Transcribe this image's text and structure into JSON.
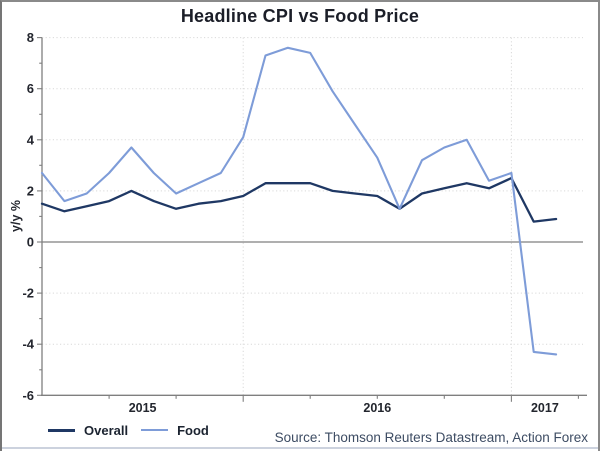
{
  "title": "Headline CPI vs Food Price",
  "source": "Source: Thomson Reuters Datastream, Action Forex",
  "y_axis": {
    "title": "y/y %",
    "min": -6,
    "max": 8,
    "tick_step": 2,
    "tick_labels": [
      "8",
      "6",
      "4",
      "2",
      "0",
      "-2",
      "-4",
      "-6"
    ]
  },
  "x_axis": {
    "year_labels": [
      "2015",
      "2016",
      "2017"
    ],
    "major_gridlines_at": [
      "Jan 2016",
      "Jan 2017"
    ]
  },
  "colors": {
    "overall": "#1F3864",
    "food": "#7E9CD8",
    "grid": "#d9d9d9",
    "axis": "#7f7f7f",
    "zero_line": "#7f7f7f",
    "tick_text": "#23262e",
    "title_text": "#1b1e28",
    "source_text": "#3d4c63"
  },
  "chart_data": {
    "type": "line",
    "title": "Headline CPI vs Food Price",
    "ylabel": "y/y %",
    "ylim": [
      -6,
      8
    ],
    "grid": "horizontal dotted every 2, vertical dotted at year starts",
    "legend_position": "bottom-left",
    "x": [
      "Apr 2015",
      "May 2015",
      "Jun 2015",
      "Jul 2015",
      "Aug 2015",
      "Sep 2015",
      "Oct 2015",
      "Nov 2015",
      "Dec 2015",
      "Jan 2016",
      "Feb 2016",
      "Mar 2016",
      "Apr 2016",
      "May 2016",
      "Jun 2016",
      "Jul 2016",
      "Aug 2016",
      "Sep 2016",
      "Oct 2016",
      "Nov 2016",
      "Dec 2016",
      "Jan 2017",
      "Feb 2017",
      "Mar 2017"
    ],
    "series": [
      {
        "name": "Overall",
        "color_key": "overall",
        "values": [
          1.5,
          1.2,
          1.4,
          1.6,
          2.0,
          1.6,
          1.3,
          1.5,
          1.6,
          1.8,
          2.3,
          2.3,
          2.3,
          2.0,
          1.9,
          1.8,
          1.3,
          1.9,
          2.1,
          2.3,
          2.1,
          2.5,
          0.8,
          0.9
        ]
      },
      {
        "name": "Food",
        "color_key": "food",
        "values": [
          2.7,
          1.6,
          1.9,
          2.7,
          3.7,
          2.7,
          1.9,
          2.3,
          2.7,
          4.1,
          7.3,
          7.6,
          7.4,
          5.9,
          4.6,
          3.3,
          1.3,
          3.2,
          3.7,
          4.0,
          2.4,
          2.7,
          -4.3,
          -4.4
        ]
      }
    ]
  }
}
